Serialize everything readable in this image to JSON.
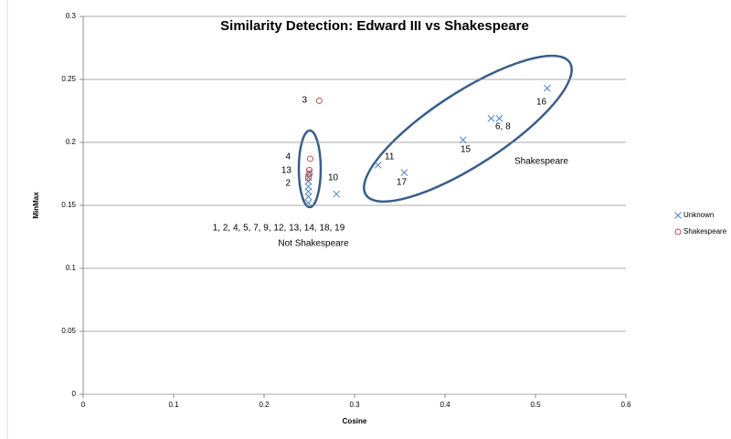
{
  "chart_data": {
    "type": "scatter",
    "title": "Similarity Detection: Edward III vs Shakespeare",
    "x_label": "Cosine",
    "y_label": "MinMax",
    "xlim": [
      0,
      0.6
    ],
    "ylim": [
      0,
      0.3
    ],
    "xticks": [
      0,
      0.1,
      0.2,
      0.3,
      0.4,
      0.5,
      0.6
    ],
    "yticks": [
      0,
      0.05,
      0.1,
      0.15,
      0.2,
      0.25,
      0.3
    ],
    "grid": true,
    "legend": "right",
    "series": [
      {
        "name": "Unknown",
        "color": "#4f81bd",
        "marker": "x",
        "x": [
          0.513,
          0.451,
          0.46,
          0.42,
          0.355,
          0.326,
          0.28,
          0.249,
          0.249,
          0.249,
          0.249,
          0.249,
          0.249,
          0.25
        ],
        "values": [
          0.243,
          0.219,
          0.219,
          0.202,
          0.176,
          0.182,
          0.159,
          0.152,
          0.157,
          0.161,
          0.165,
          0.169,
          0.172,
          0.176
        ]
      },
      {
        "name": "Shakespeare",
        "color": "#c0504d",
        "marker": "o",
        "x": [
          0.261,
          0.251,
          0.25,
          0.25,
          0.249
        ],
        "values": [
          0.233,
          0.187,
          0.178,
          0.175,
          0.172
        ]
      }
    ],
    "annotations": [
      "3",
      "4",
      "13",
      "2",
      "10",
      "11",
      "17",
      "15",
      "6, 8",
      "16",
      "Shakespeare",
      "1, 2, 4, 5, 7, 9, 12, 13, 14, 18, 19",
      "Not Shakespeare"
    ]
  }
}
